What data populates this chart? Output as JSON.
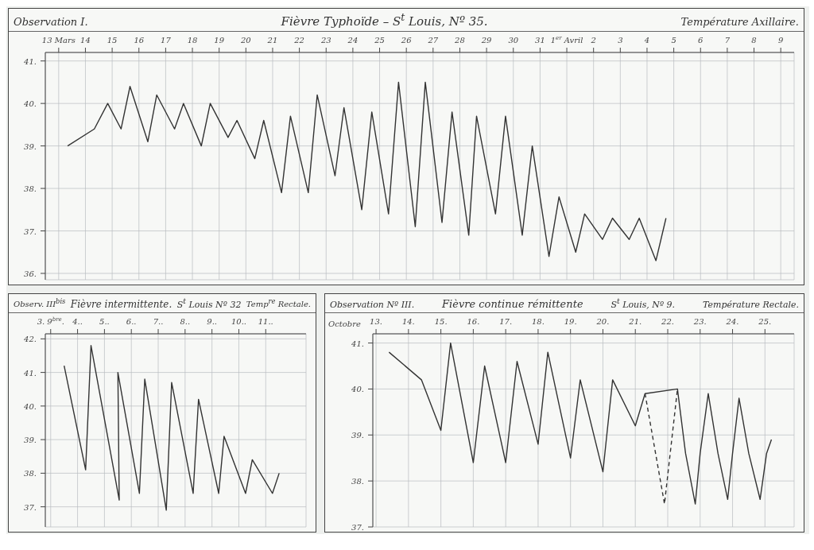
{
  "chart_data": [
    {
      "type": "line",
      "title": "Fièvre Typhoïde – S$^{t}$ Louis, Nº 35.",
      "subtitle": "Température Axillaire.",
      "annotations": [
        "Observation I."
      ],
      "series": [
        {
          "color": "#333333",
          "line_style": "solid",
          "x": [
            "--03-13T08:00",
            "--03-14T08:00",
            "--03-14T20:00",
            "--03-15T08:00",
            "--03-15T16:00",
            "--03-16T08:00",
            "--03-16T16:00",
            "--03-17T08:00",
            "--03-17T16:00",
            "--03-18T08:00",
            "--03-18T16:00",
            "--03-19T08:00",
            "--03-19T16:00",
            "--03-20T08:00",
            "--03-20T16:00",
            "--03-21T08:00",
            "--03-21T16:00",
            "--03-22T08:00",
            "--03-22T16:00",
            "--03-23T08:00",
            "--03-23T16:00",
            "--03-24T08:00",
            "--03-24T17:00",
            "--03-25T08:00",
            "--03-25T17:00",
            "--03-26T08:00",
            "--03-26T17:00",
            "--03-27T08:00",
            "--03-27T17:00",
            "--03-28T08:00",
            "--03-28T15:00",
            "--03-29T08:00",
            "--03-29T17:00",
            "--03-30T08:00",
            "--03-30T17:00",
            "--03-31T08:00",
            "--03-31T17:00",
            "--04-01T08:00",
            "--04-01T16:00",
            "--04-02T08:00",
            "--04-02T17:00",
            "--04-03T08:00",
            "--04-03T17:00",
            "--04-04T08:00",
            "--04-04T17:00"
          ],
          "values": [
            39.0,
            39.4,
            40.0,
            39.4,
            40.4,
            39.1,
            40.2,
            39.4,
            40.0,
            39.0,
            40.0,
            39.2,
            39.6,
            38.7,
            39.6,
            37.9,
            39.7,
            37.9,
            40.2,
            38.3,
            39.9,
            37.5,
            39.8,
            37.4,
            40.5,
            37.1,
            40.5,
            37.2,
            39.8,
            36.9,
            39.7,
            37.4,
            39.7,
            36.9,
            39.0,
            36.4,
            37.8,
            36.5,
            37.4,
            36.8,
            37.3,
            36.8,
            37.3,
            36.3,
            37.3
          ]
        }
      ],
      "xlim": [
        "--03-12T12:00",
        "--04-09T12:00"
      ],
      "xticks": [
        {
          "value": "--03-13",
          "label": "13 Mars"
        },
        {
          "value": "--03-14",
          "label": "14"
        },
        {
          "value": "--03-15",
          "label": "15"
        },
        {
          "value": "--03-16",
          "label": "16"
        },
        {
          "value": "--03-17",
          "label": "17"
        },
        {
          "value": "--03-18",
          "label": "18"
        },
        {
          "value": "--03-19",
          "label": "19"
        },
        {
          "value": "--03-20",
          "label": "20"
        },
        {
          "value": "--03-21",
          "label": "21"
        },
        {
          "value": "--03-22",
          "label": "22"
        },
        {
          "value": "--03-23",
          "label": "23"
        },
        {
          "value": "--03-24",
          "label": "24"
        },
        {
          "value": "--03-25",
          "label": "25"
        },
        {
          "value": "--03-26",
          "label": "26"
        },
        {
          "value": "--03-27",
          "label": "27"
        },
        {
          "value": "--03-28",
          "label": "28"
        },
        {
          "value": "--03-29",
          "label": "29"
        },
        {
          "value": "--03-30",
          "label": "30"
        },
        {
          "value": "--03-31",
          "label": "31"
        },
        {
          "value": "--04-01",
          "label": "1$^{er}$ Avril"
        },
        {
          "value": "--04-02",
          "label": "2"
        },
        {
          "value": "--04-03",
          "label": "3"
        },
        {
          "value": "--04-04",
          "label": "4"
        },
        {
          "value": "--04-05",
          "label": "5"
        },
        {
          "value": "--04-06",
          "label": "6"
        },
        {
          "value": "--04-07",
          "label": "7"
        },
        {
          "value": "--04-08",
          "label": "8"
        },
        {
          "value": "--04-09",
          "label": "9"
        }
      ],
      "ylim": [
        35.85,
        41.2
      ],
      "yticks": [
        {
          "value": 36,
          "label": "36."
        },
        {
          "value": 37,
          "label": "37."
        },
        {
          "value": 38,
          "label": "38."
        },
        {
          "value": 39,
          "label": "39."
        },
        {
          "value": 40,
          "label": "40."
        },
        {
          "value": 41,
          "label": "41."
        }
      ],
      "grid": true
    },
    {
      "type": "line",
      "title": "Fièvre intermittente.",
      "subtitle": "Temp$^{re}$ Rectale.",
      "annotations": [
        "Observ. III$^{bis}$",
        "S$^{t}$ Louis Nº 32"
      ],
      "series": [
        {
          "color": "#333333",
          "line_style": "solid",
          "x": [
            3.5,
            4.3,
            4.5,
            5.55,
            5.5,
            6.3,
            6.5,
            7.3,
            7.5,
            8.3,
            8.5,
            9.25,
            9.45,
            10.25,
            10.5,
            11.25,
            11.5
          ],
          "values": [
            41.2,
            38.1,
            41.8,
            37.2,
            41.0,
            37.4,
            40.8,
            36.9,
            40.7,
            37.4,
            40.2,
            37.4,
            39.1,
            37.4,
            38.4,
            37.4,
            38.0
          ]
        }
      ],
      "xlim": [
        2.8,
        12.5
      ],
      "xticks": [
        {
          "value": 3,
          "label": "3. 9$^{bre}$."
        },
        {
          "value": 4,
          "label": "4.."
        },
        {
          "value": 5,
          "label": "5.."
        },
        {
          "value": 6,
          "label": "6.."
        },
        {
          "value": 7,
          "label": "7.."
        },
        {
          "value": 8,
          "label": "8.."
        },
        {
          "value": 9,
          "label": "9.."
        },
        {
          "value": 10,
          "label": "10.."
        },
        {
          "value": 11,
          "label": "11.."
        }
      ],
      "ylim": [
        36.4,
        42.15
      ],
      "yticks": [
        {
          "value": 37,
          "label": "37."
        },
        {
          "value": 38,
          "label": "38."
        },
        {
          "value": 39,
          "label": "39."
        },
        {
          "value": 40,
          "label": "40."
        },
        {
          "value": 41,
          "label": "41."
        },
        {
          "value": 42,
          "label": "42."
        }
      ],
      "grid": true
    },
    {
      "type": "line",
      "title": "Fièvre continue rémittente",
      "subtitle": "Température Rectale.",
      "annotations": [
        "Observation Nº III.",
        "S$^{t}$ Louis, Nº 9."
      ],
      "xlabel": "Octobre",
      "series": [
        {
          "color": "#333333",
          "line_style": "solid",
          "x": [
            13.4,
            14.4,
            15,
            15.3,
            16,
            16.35,
            17,
            17.35,
            18,
            18.3,
            19,
            19.3,
            20,
            20.3,
            21,
            21.3,
            22.3,
            22.55,
            22.85,
            23,
            23.25,
            23.55,
            23.85,
            24,
            24.2,
            24.5,
            24.85,
            25.05,
            25.2
          ],
          "values": [
            40.8,
            40.2,
            39.1,
            41.0,
            38.4,
            40.5,
            38.4,
            40.6,
            38.8,
            40.8,
            38.5,
            40.2,
            38.2,
            40.2,
            39.2,
            39.9,
            40.0,
            38.6,
            37.5,
            38.6,
            39.9,
            38.6,
            37.6,
            38.6,
            39.8,
            38.6,
            37.6,
            38.6,
            38.9
          ]
        },
        {
          "color": "#333333",
          "line_style": "dashed",
          "x": [
            21.3,
            21.9,
            22.3
          ],
          "values": [
            39.9,
            37.5,
            40.0
          ]
        }
      ],
      "xlim": [
        12.9,
        25.9
      ],
      "xticks": [
        {
          "value": 13,
          "label": "13."
        },
        {
          "value": 14,
          "label": "14."
        },
        {
          "value": 15,
          "label": "15."
        },
        {
          "value": 16,
          "label": "16."
        },
        {
          "value": 17,
          "label": "17."
        },
        {
          "value": 18,
          "label": "18."
        },
        {
          "value": 19,
          "label": "19."
        },
        {
          "value": 20,
          "label": "20."
        },
        {
          "value": 21,
          "label": "21."
        },
        {
          "value": 22,
          "label": "22."
        },
        {
          "value": 23,
          "label": "23."
        },
        {
          "value": 24,
          "label": "24."
        },
        {
          "value": 25,
          "label": "25."
        }
      ],
      "ylim": [
        37,
        41.2
      ],
      "yticks": [
        {
          "value": 37,
          "label": "37."
        },
        {
          "value": 38,
          "label": "38."
        },
        {
          "value": 39,
          "label": "39."
        },
        {
          "value": 40,
          "label": "40."
        },
        {
          "value": 41,
          "label": "41."
        }
      ],
      "grid": true
    }
  ]
}
